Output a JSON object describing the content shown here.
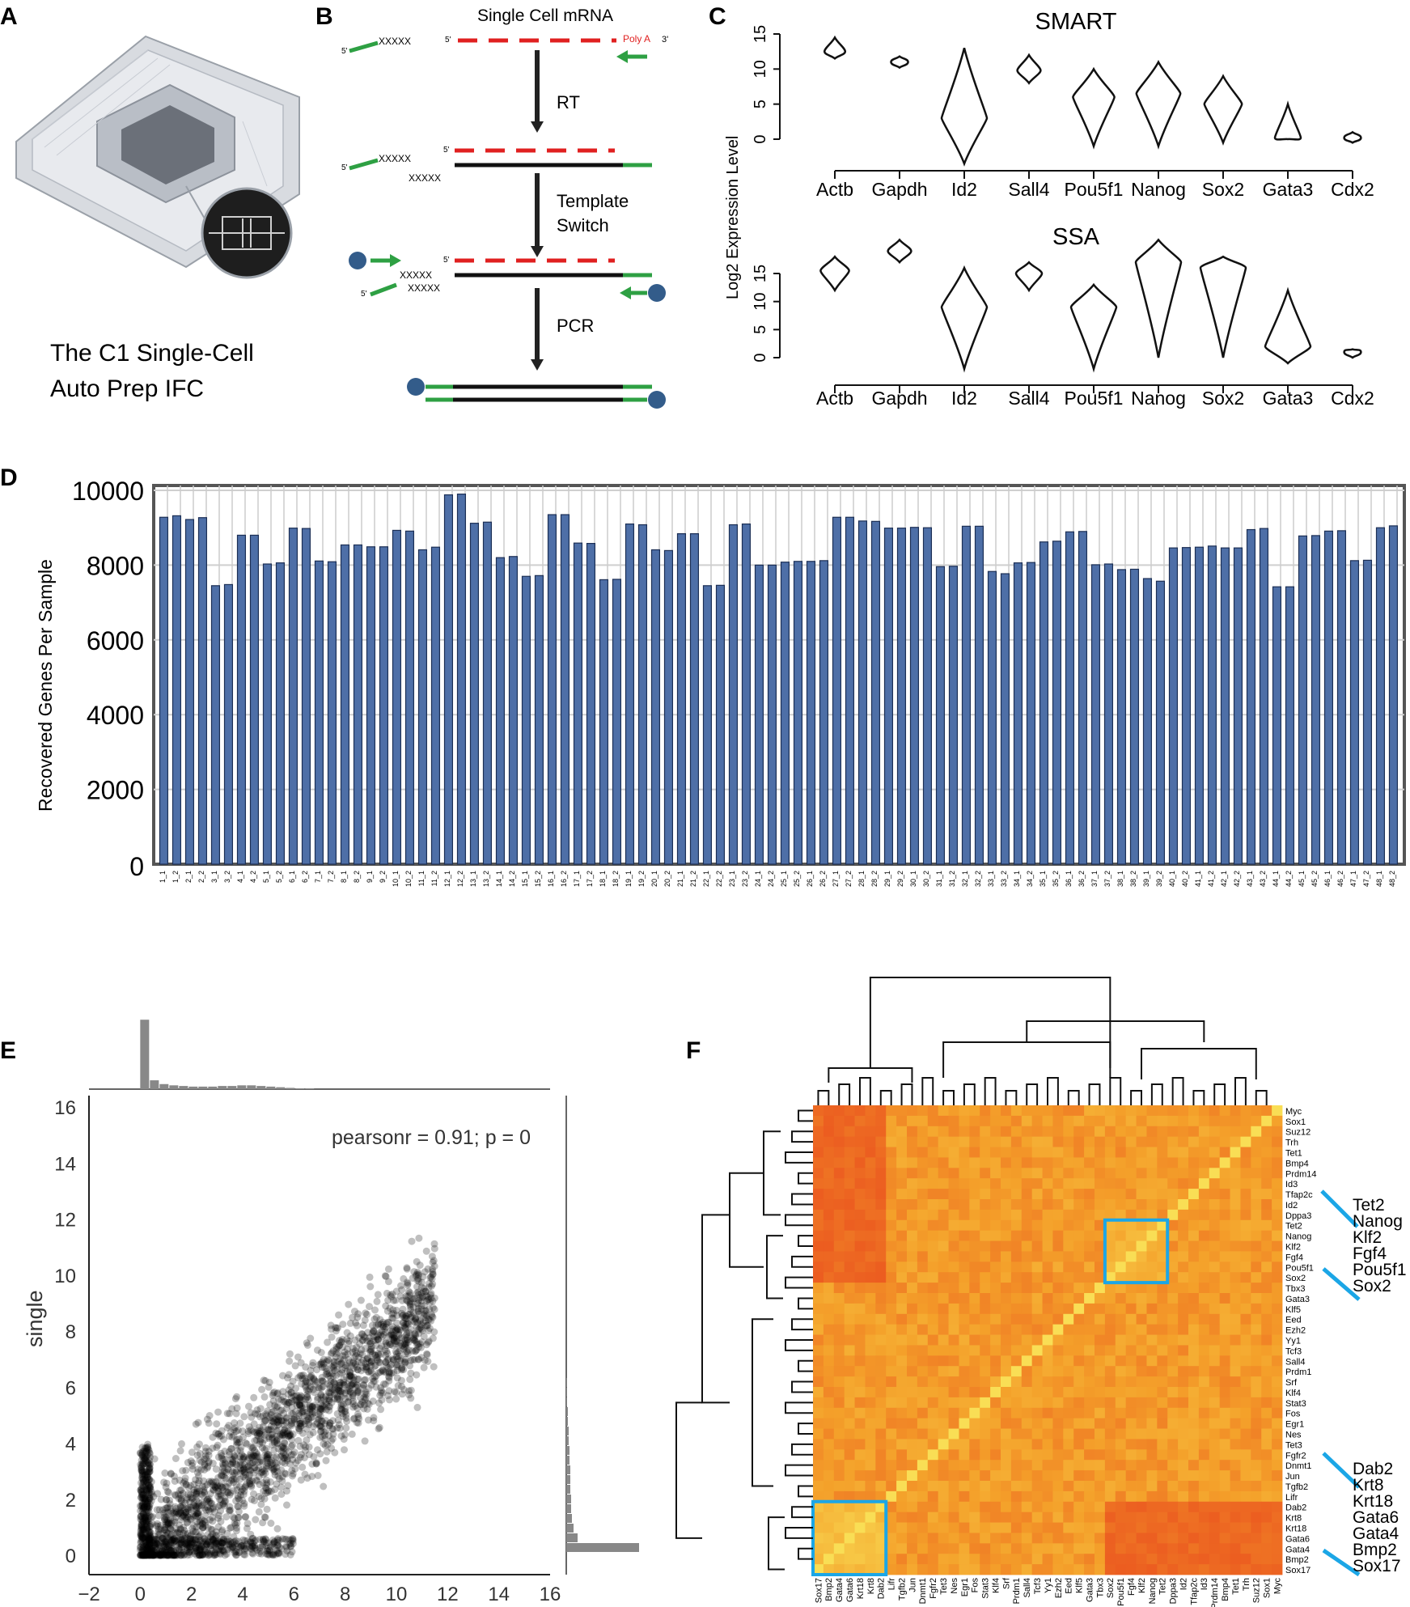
{
  "panels": {
    "A": {
      "letter": "A",
      "caption_line1": "The C1 Single-Cell",
      "caption_line2": "Auto Prep IFC"
    },
    "B": {
      "letter": "B",
      "title": "Single Cell mRNA",
      "poly_a": "Poly A",
      "three_prime": "3'",
      "five_prime": "5'",
      "tag": "XXXXX",
      "steps": [
        "RT",
        "Template",
        "Switch",
        "PCR"
      ]
    },
    "C": {
      "letter": "C",
      "ylabel": "Log2 Expression Level"
    },
    "D": {
      "letter": "D"
    },
    "E": {
      "letter": "E"
    },
    "F": {
      "letter": "F"
    }
  },
  "violin_C": {
    "genes": [
      "Actb",
      "Gapdh",
      "Id2",
      "Sall4",
      "Pou5f1",
      "Nanog",
      "Sox2",
      "Gata3",
      "Cdx2"
    ],
    "yticks": [
      "0",
      "5",
      "10",
      "15"
    ],
    "plots": [
      {
        "title": "SMART",
        "medians": [
          12.5,
          11,
          3,
          9.8,
          6,
          6.5,
          5,
          0.2,
          0.2
        ],
        "ranges": [
          [
            11.5,
            14.5
          ],
          [
            10.2,
            11.8
          ],
          [
            -3.5,
            13
          ],
          [
            8,
            12
          ],
          [
            -1,
            10
          ],
          [
            -1,
            11
          ],
          [
            -0.5,
            9
          ],
          [
            0,
            5
          ],
          [
            -0.5,
            1
          ]
        ]
      },
      {
        "title": "SSA",
        "medians": [
          15.5,
          19,
          9,
          15,
          9,
          17,
          16,
          2,
          1
        ],
        "ranges": [
          [
            12,
            18
          ],
          [
            17,
            21
          ],
          [
            -2,
            16
          ],
          [
            12,
            17
          ],
          [
            -2,
            13
          ],
          [
            0,
            21
          ],
          [
            0,
            18
          ],
          [
            -1,
            12
          ],
          [
            0,
            1.5
          ]
        ]
      }
    ]
  },
  "chart_D": {
    "type": "bar",
    "ylabel": "Recovered Genes Per Sample",
    "yticks": [
      "0",
      "2000",
      "4000",
      "6000",
      "8000",
      "10000"
    ],
    "ylim": [
      0,
      10000
    ],
    "categories": [
      "1_1",
      "1_2",
      "2_1",
      "2_2",
      "3_1",
      "3_2",
      "4_1",
      "4_2",
      "5_1",
      "5_2",
      "6_1",
      "6_2",
      "7_1",
      "7_2",
      "8_1",
      "8_2",
      "9_1",
      "9_2",
      "10_1",
      "10_2",
      "11_1",
      "11_2",
      "12_1",
      "12_2",
      "13_1",
      "13_2",
      "14_1",
      "14_2",
      "15_1",
      "15_2",
      "16_1",
      "16_2",
      "17_1",
      "17_2",
      "18_1",
      "18_2",
      "19_1",
      "19_2",
      "20_1",
      "20_2",
      "21_1",
      "21_2",
      "22_1",
      "22_2",
      "23_1",
      "23_2",
      "24_1",
      "24_2",
      "25_1",
      "25_2",
      "26_1",
      "26_2",
      "27_1",
      "27_2",
      "28_1",
      "28_2",
      "29_1",
      "29_2",
      "30_1",
      "30_2",
      "31_1",
      "31_2",
      "32_1",
      "32_2",
      "33_1",
      "33_2",
      "34_1",
      "34_2",
      "35_1",
      "35_2",
      "36_1",
      "36_2",
      "37_1",
      "37_2",
      "38_1",
      "38_2",
      "39_1",
      "39_2",
      "40_1",
      "40_2",
      "41_1",
      "41_2",
      "42_1",
      "42_2",
      "43_1",
      "43_2",
      "44_1",
      "44_2",
      "45_1",
      "45_2",
      "46_1",
      "46_2",
      "47_1",
      "47_2",
      "48_1",
      "48_2"
    ],
    "values": [
      9280,
      9320,
      9220,
      9270,
      7450,
      7480,
      8800,
      8800,
      8030,
      8060,
      8990,
      8980,
      8110,
      8090,
      8540,
      8540,
      8490,
      8490,
      8930,
      8910,
      8410,
      8480,
      9880,
      9900,
      9120,
      9150,
      8200,
      8230,
      7700,
      7720,
      9350,
      9350,
      8590,
      8580,
      7610,
      7620,
      9100,
      9080,
      8410,
      8390,
      8840,
      8840,
      7450,
      7460,
      9080,
      9100,
      8000,
      8000,
      8080,
      8100,
      8100,
      8120,
      9280,
      9280,
      9180,
      9170,
      8990,
      8990,
      9010,
      9000,
      7960,
      7970,
      9040,
      9040,
      7830,
      7770,
      8060,
      8070,
      8620,
      8640,
      8890,
      8900,
      8010,
      8030,
      7880,
      7890,
      7640,
      7570,
      8460,
      8470,
      8480,
      8510,
      8460,
      8460,
      8950,
      8980,
      7420,
      7420,
      8780,
      8790,
      8910,
      8920,
      8120,
      8130,
      9000,
      9050
    ]
  },
  "chart_E": {
    "type": "scatter",
    "xticks": [
      "−2",
      "0",
      "2",
      "4",
      "6",
      "8",
      "10",
      "12",
      "14",
      "16"
    ],
    "yticks": [
      "0",
      "2",
      "4",
      "6",
      "8",
      "10",
      "12",
      "14",
      "16"
    ],
    "xlim": [
      -2,
      16
    ],
    "ylim": [
      -0.5,
      16
    ],
    "ylabel": "single",
    "annotation": "pearsonr = 0.91; p = 0",
    "point_color": "#000000",
    "hist_color": "#888888"
  },
  "heatmap_F": {
    "row_labels": [
      "Myc",
      "Sox1",
      "Suz12",
      "Trh",
      "Tet1",
      "Bmp4",
      "Prdm14",
      "Id3",
      "Tfap2c",
      "Id2",
      "Dppa3",
      "Tet2",
      "Nanog",
      "Klf2",
      "Fgf4",
      "Pou5f1",
      "Sox2",
      "Tbx3",
      "Gata3",
      "Klf5",
      "Eed",
      "Ezh2",
      "Yy1",
      "Tcf3",
      "Sall4",
      "Prdm1",
      "Srf",
      "Klf4",
      "Stat3",
      "Fos",
      "Egr1",
      "Nes",
      "Tet3",
      "Fgfr2",
      "Dnmt1",
      "Jun",
      "Tgfb2",
      "Lifr",
      "Dab2",
      "Krt8",
      "Krt18",
      "Gata6",
      "Gata4",
      "Bmp2",
      "Sox17"
    ],
    "callout_top": [
      "Tet2",
      "Nanog",
      "Klf2",
      "Fgf4",
      "Pou5f1",
      "Sox2"
    ],
    "callout_bottom": [
      "Dab2",
      "Krt8",
      "Krt18",
      "Gata6",
      "Gata4",
      "Bmp2",
      "Sox17"
    ],
    "colors": {
      "high": "#f9e55a",
      "mid": "#f4a02a",
      "low": "#e8401c",
      "box": "#1ba6e6"
    }
  }
}
